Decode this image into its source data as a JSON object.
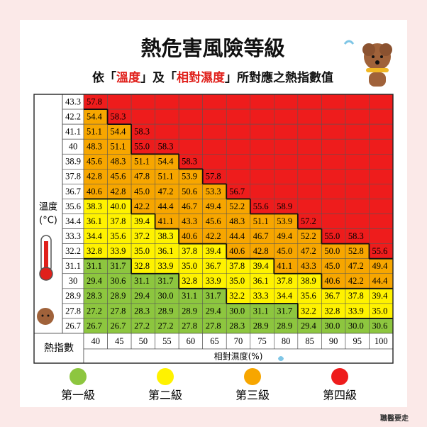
{
  "header": {
    "title": "熱危害風險等級",
    "subtitle_parts": [
      {
        "text": "依「",
        "color": "#111111"
      },
      {
        "text": "溫度",
        "color": "#e0201b"
      },
      {
        "text": "」及「",
        "color": "#111111"
      },
      {
        "text": "相對濕度",
        "color": "#e0201b"
      },
      {
        "text": "」所對應之熱指數值",
        "color": "#111111"
      }
    ]
  },
  "table": {
    "row_axis_label": [
      "溫度",
      "(°C)"
    ],
    "corner_label": "熱指數",
    "column_axis_label": "相對濕度(%)",
    "columns": [
      40,
      45,
      50,
      55,
      60,
      65,
      70,
      75,
      80,
      85,
      90,
      95,
      100
    ],
    "rows": [
      {
        "temp": "43.3",
        "values": [
          "57.8",
          null,
          null,
          null,
          null,
          null,
          null,
          null,
          null,
          null,
          null,
          null,
          null
        ],
        "levels": [
          4,
          4,
          4,
          4,
          4,
          4,
          4,
          4,
          4,
          4,
          4,
          4,
          4
        ]
      },
      {
        "temp": "42.2",
        "values": [
          "54.4",
          "58.3",
          null,
          null,
          null,
          null,
          null,
          null,
          null,
          null,
          null,
          null,
          null
        ],
        "levels": [
          3,
          4,
          4,
          4,
          4,
          4,
          4,
          4,
          4,
          4,
          4,
          4,
          4
        ]
      },
      {
        "temp": "41.1",
        "values": [
          "51.1",
          "54.4",
          "58.3",
          null,
          null,
          null,
          null,
          null,
          null,
          null,
          null,
          null,
          null
        ],
        "levels": [
          3,
          3,
          4,
          4,
          4,
          4,
          4,
          4,
          4,
          4,
          4,
          4,
          4
        ]
      },
      {
        "temp": "40",
        "values": [
          "48.3",
          "51.1",
          "55.0",
          "58.3",
          null,
          null,
          null,
          null,
          null,
          null,
          null,
          null,
          null
        ],
        "levels": [
          3,
          3,
          4,
          4,
          4,
          4,
          4,
          4,
          4,
          4,
          4,
          4,
          4
        ]
      },
      {
        "temp": "38.9",
        "values": [
          "45.6",
          "48.3",
          "51.1",
          "54.4",
          "58.3",
          null,
          null,
          null,
          null,
          null,
          null,
          null,
          null
        ],
        "levels": [
          3,
          3,
          3,
          3,
          4,
          4,
          4,
          4,
          4,
          4,
          4,
          4,
          4
        ]
      },
      {
        "temp": "37.8",
        "values": [
          "42.8",
          "45.6",
          "47.8",
          "51.1",
          "53.9",
          "57.8",
          null,
          null,
          null,
          null,
          null,
          null,
          null
        ],
        "levels": [
          3,
          3,
          3,
          3,
          3,
          4,
          4,
          4,
          4,
          4,
          4,
          4,
          4
        ]
      },
      {
        "temp": "36.7",
        "values": [
          "40.6",
          "42.8",
          "45.0",
          "47.2",
          "50.6",
          "53.3",
          "56.7",
          null,
          null,
          null,
          null,
          null,
          null
        ],
        "levels": [
          3,
          3,
          3,
          3,
          3,
          3,
          4,
          4,
          4,
          4,
          4,
          4,
          4
        ]
      },
      {
        "temp": "35.6",
        "values": [
          "38.3",
          "40.0",
          "42.2",
          "44.4",
          "46.7",
          "49.4",
          "52.2",
          "55.6",
          "58.9",
          null,
          null,
          null,
          null
        ],
        "levels": [
          2,
          2,
          3,
          3,
          3,
          3,
          3,
          4,
          4,
          4,
          4,
          4,
          4
        ]
      },
      {
        "temp": "34.4",
        "values": [
          "36.1",
          "37.8",
          "39.4",
          "41.1",
          "43.3",
          "45.6",
          "48.3",
          "51.1",
          "53.9",
          "57.2",
          null,
          null,
          null
        ],
        "levels": [
          2,
          2,
          2,
          3,
          3,
          3,
          3,
          3,
          3,
          4,
          4,
          4,
          4
        ]
      },
      {
        "temp": "33.3",
        "values": [
          "34.4",
          "35.6",
          "37.2",
          "38.3",
          "40.6",
          "42.2",
          "44.4",
          "46.7",
          "49.4",
          "52.2",
          "55.0",
          "58.3",
          null
        ],
        "levels": [
          2,
          2,
          2,
          2,
          3,
          3,
          3,
          3,
          3,
          3,
          4,
          4,
          4
        ]
      },
      {
        "temp": "32.2",
        "values": [
          "32.8",
          "33.9",
          "35.0",
          "36.1",
          "37.8",
          "39.4",
          "40.6",
          "42.8",
          "45.0",
          "47.2",
          "50.0",
          "52.8",
          "55.6"
        ],
        "levels": [
          2,
          2,
          2,
          2,
          2,
          2,
          3,
          3,
          3,
          3,
          3,
          3,
          4
        ]
      },
      {
        "temp": "31.1",
        "values": [
          "31.1",
          "31.7",
          "32.8",
          "33.9",
          "35.0",
          "36.7",
          "37.8",
          "39.4",
          "41.1",
          "43.3",
          "45.0",
          "47.2",
          "49.4"
        ],
        "levels": [
          1,
          1,
          2,
          2,
          2,
          2,
          2,
          2,
          3,
          3,
          3,
          3,
          3
        ]
      },
      {
        "temp": "30",
        "values": [
          "29.4",
          "30.6",
          "31.1",
          "31.7",
          "32.8",
          "33.9",
          "35.0",
          "36.1",
          "37.8",
          "38.9",
          "40.6",
          "42.2",
          "44.4"
        ],
        "levels": [
          1,
          1,
          1,
          1,
          2,
          2,
          2,
          2,
          2,
          2,
          3,
          3,
          3
        ]
      },
      {
        "temp": "28.9",
        "values": [
          "28.3",
          "28.9",
          "29.4",
          "30.0",
          "31.1",
          "31.7",
          "32.2",
          "33.3",
          "34.4",
          "35.6",
          "36.7",
          "37.8",
          "39.4"
        ],
        "levels": [
          1,
          1,
          1,
          1,
          1,
          1,
          2,
          2,
          2,
          2,
          2,
          2,
          2
        ]
      },
      {
        "temp": "27.8",
        "values": [
          "27.2",
          "27.8",
          "28.3",
          "28.9",
          "28.9",
          "29.4",
          "30.0",
          "31.1",
          "31.7",
          "32.2",
          "32.8",
          "33.9",
          "35.0"
        ],
        "levels": [
          1,
          1,
          1,
          1,
          1,
          1,
          1,
          1,
          1,
          2,
          2,
          2,
          2
        ]
      },
      {
        "temp": "26.7",
        "values": [
          "26.7",
          "26.7",
          "27.2",
          "27.2",
          "27.8",
          "27.8",
          "28.3",
          "28.9",
          "28.9",
          "29.4",
          "30.0",
          "30.0",
          "30.6"
        ],
        "levels": [
          1,
          1,
          1,
          1,
          1,
          1,
          1,
          1,
          1,
          1,
          1,
          1,
          1
        ]
      }
    ]
  },
  "legend": [
    {
      "label": "第一級",
      "color": "#8dc63f"
    },
    {
      "label": "第二級",
      "color": "#fff200"
    },
    {
      "label": "第三級",
      "color": "#f7a600"
    },
    {
      "label": "第四級",
      "color": "#ee1c1c"
    }
  ],
  "watermark": "職醫要走"
}
